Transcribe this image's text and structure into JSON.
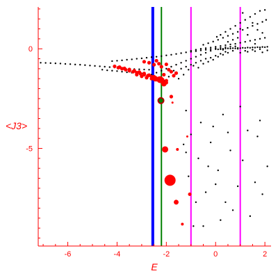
{
  "chart_data": {
    "type": "scatter",
    "title": "",
    "xlabel": "E",
    "ylabel": "<J3>",
    "xlim": [
      -7.2,
      2.25
    ],
    "ylim": [
      -9.9,
      2.1
    ],
    "xticks": [
      {
        "value": -6,
        "label": "-6"
      },
      {
        "value": -4,
        "label": "-4"
      },
      {
        "value": -2,
        "label": "-2"
      },
      {
        "value": 0,
        "label": "0"
      },
      {
        "value": 2,
        "label": "2"
      }
    ],
    "yticks": [
      {
        "value": 0,
        "label": "0"
      },
      {
        "value": -5,
        "label": "-5"
      }
    ],
    "grid": false,
    "colors": {
      "axis": "#ff0000",
      "labels": "#ff0000",
      "black_points": "#000000",
      "red_points": "#ff0000",
      "blue_line": "#0000ff",
      "green_line": "#008000",
      "magenta_line": "#ff00ff",
      "large_markers": "#ff0000",
      "dark_marker": "#b40000",
      "green_marker": "#008000"
    },
    "vertical_lines": [
      {
        "x": -2.55,
        "color": "#0000ff"
      },
      {
        "x": -2.2,
        "color": "#008000"
      },
      {
        "x": -1.0,
        "color": "#ff00ff"
      },
      {
        "x": 1.0,
        "color": "#ff00ff"
      }
    ],
    "series": [
      {
        "color": "#000000",
        "note_points": [
          [
            -7.1,
            -0.7
          ],
          [
            -6.9,
            -0.71
          ],
          [
            -6.7,
            -0.72
          ],
          [
            -6.5,
            -0.73
          ],
          [
            -6.3,
            -0.74
          ],
          [
            -6.1,
            -0.76
          ],
          [
            -5.9,
            -0.77
          ],
          [
            -5.7,
            -0.79
          ],
          [
            -5.5,
            -0.8
          ],
          [
            -5.3,
            -0.82
          ],
          [
            -5.1,
            -0.84
          ],
          [
            -4.9,
            -0.86
          ],
          [
            -4.7,
            -0.88
          ],
          [
            -4.5,
            -0.9
          ],
          [
            -4.3,
            -0.92
          ],
          [
            -4.1,
            -0.94
          ],
          [
            -3.9,
            -0.96
          ],
          [
            -3.7,
            -0.98
          ],
          [
            -3.5,
            -1.0
          ],
          [
            -3.3,
            -1.02
          ],
          [
            -3.1,
            -1.03
          ],
          [
            -2.9,
            -1.04
          ],
          [
            -2.7,
            -1.05
          ],
          [
            -4.6,
            -1.05
          ],
          [
            -4.4,
            -1.08
          ],
          [
            -4.2,
            -1.1
          ],
          [
            -4.0,
            -1.12
          ],
          [
            -3.8,
            -1.15
          ],
          [
            -3.6,
            -1.18
          ],
          [
            -3.4,
            -1.2
          ],
          [
            -3.2,
            -1.22
          ],
          [
            -3.0,
            -1.24
          ],
          [
            -4.2,
            -0.62
          ],
          [
            -4.0,
            -0.6
          ],
          [
            -3.8,
            -0.58
          ],
          [
            -3.6,
            -0.55
          ],
          [
            -3.4,
            -0.53
          ],
          [
            -3.2,
            -0.5
          ],
          [
            -3.0,
            -0.48
          ],
          [
            -2.8,
            -0.45
          ],
          [
            -2.6,
            -0.42
          ],
          [
            -2.4,
            -0.4
          ],
          [
            -2.2,
            -0.37
          ],
          [
            -2.0,
            -0.33
          ],
          [
            -1.8,
            -0.3
          ],
          [
            -1.6,
            -0.26
          ],
          [
            -1.4,
            -0.22
          ],
          [
            -1.2,
            -0.18
          ],
          [
            -1.0,
            -0.15
          ],
          [
            -0.8,
            -0.12
          ],
          [
            -0.6,
            -0.08
          ],
          [
            -0.4,
            -0.05
          ],
          [
            -0.2,
            -0.02
          ],
          [
            0.0,
            0.02
          ],
          [
            0.2,
            0.05
          ],
          [
            0.4,
            0.08
          ],
          [
            0.6,
            0.1
          ],
          [
            0.8,
            0.12
          ],
          [
            -2.6,
            -1.3
          ],
          [
            -2.4,
            -1.2
          ],
          [
            -2.2,
            -1.1
          ],
          [
            -2.0,
            -1.0
          ],
          [
            -1.8,
            -0.9
          ],
          [
            -1.6,
            -0.8
          ],
          [
            -1.4,
            -0.7
          ],
          [
            -1.2,
            -0.6
          ],
          [
            -1.0,
            -0.5
          ],
          [
            -0.8,
            -0.4
          ],
          [
            -0.6,
            -0.3
          ],
          [
            -0.4,
            -0.2
          ],
          [
            -0.2,
            -0.1
          ],
          [
            -1.4,
            -1.0
          ],
          [
            -1.2,
            -0.9
          ],
          [
            -1.0,
            -0.8
          ],
          [
            -0.8,
            -0.7
          ],
          [
            -0.6,
            -0.6
          ],
          [
            -0.4,
            -0.5
          ],
          [
            -0.2,
            -0.45
          ],
          [
            0.0,
            -0.35
          ],
          [
            0.2,
            -0.25
          ],
          [
            0.4,
            -0.15
          ],
          [
            -1.0,
            -0.1
          ],
          [
            -0.8,
            -0.05
          ],
          [
            -0.6,
            0.0
          ],
          [
            -0.4,
            0.03
          ],
          [
            -0.2,
            0.06
          ],
          [
            0.0,
            0.1
          ],
          [
            0.2,
            0.14
          ],
          [
            0.4,
            0.18
          ],
          [
            0.6,
            0.22
          ],
          [
            0.8,
            0.25
          ],
          [
            1.0,
            0.3
          ],
          [
            1.2,
            0.35
          ],
          [
            1.4,
            0.4
          ],
          [
            1.6,
            0.45
          ],
          [
            1.8,
            0.5
          ],
          [
            2.0,
            0.55
          ],
          [
            -0.5,
            0.2
          ],
          [
            -0.3,
            0.28
          ],
          [
            -0.1,
            0.36
          ],
          [
            0.1,
            0.45
          ],
          [
            0.3,
            0.55
          ],
          [
            0.5,
            0.65
          ],
          [
            0.7,
            0.75
          ],
          [
            0.9,
            0.85
          ],
          [
            1.1,
            0.95
          ],
          [
            1.3,
            1.05
          ],
          [
            1.5,
            1.15
          ],
          [
            1.7,
            1.25
          ],
          [
            1.9,
            1.35
          ],
          [
            2.05,
            1.45
          ],
          [
            0.2,
            0.7
          ],
          [
            0.4,
            0.85
          ],
          [
            0.6,
            1.0
          ],
          [
            0.8,
            1.15
          ],
          [
            1.0,
            1.3
          ],
          [
            1.2,
            1.45
          ],
          [
            1.4,
            1.6
          ],
          [
            1.6,
            1.75
          ],
          [
            1.8,
            1.9
          ],
          [
            2.0,
            1.95
          ],
          [
            1.1,
            1.8
          ],
          [
            1.5,
            1.3
          ],
          [
            0.9,
            0.55
          ],
          [
            1.7,
            0.95
          ],
          [
            0.5,
            0.35
          ],
          [
            1.9,
            0.8
          ],
          [
            0.05,
            0.6
          ],
          [
            0.3,
            -0.05
          ],
          [
            0.7,
            0.45
          ],
          [
            1.3,
            0.7
          ],
          [
            1.0,
            1.0
          ],
          [
            1.6,
            0.25
          ],
          [
            -2.1,
            -1.6
          ],
          [
            -1.9,
            -1.4
          ],
          [
            -1.7,
            -1.1
          ],
          [
            -1.5,
            -1.5
          ],
          [
            -1.3,
            -1.3
          ],
          [
            -1.1,
            -1.05
          ],
          [
            -0.9,
            -0.85
          ],
          [
            -0.7,
            -0.95
          ],
          [
            -0.5,
            -0.75
          ],
          [
            -0.3,
            -0.65
          ],
          [
            -0.1,
            -0.55
          ],
          [
            0.1,
            -0.4
          ],
          [
            0.3,
            -0.3
          ],
          [
            0.5,
            -0.2
          ],
          [
            0.7,
            -0.1
          ],
          [
            0.9,
            0.0
          ],
          [
            0.0,
            -0.02
          ],
          [
            0.1,
            -0.03
          ],
          [
            0.2,
            -0.02
          ],
          [
            0.3,
            0.0
          ],
          [
            0.4,
            0.01
          ],
          [
            0.5,
            0.02
          ],
          [
            0.6,
            0.01
          ],
          [
            0.7,
            0.03
          ],
          [
            0.8,
            0.02
          ],
          [
            0.9,
            0.04
          ],
          [
            1.0,
            0.03
          ],
          [
            1.1,
            0.05
          ],
          [
            1.2,
            0.04
          ],
          [
            1.3,
            0.06
          ],
          [
            1.4,
            0.05
          ],
          [
            1.5,
            0.07
          ],
          [
            1.6,
            0.06
          ],
          [
            1.7,
            0.08
          ],
          [
            1.8,
            0.07
          ],
          [
            1.9,
            0.09
          ],
          [
            2.0,
            0.08
          ],
          [
            2.1,
            0.1
          ],
          [
            1.2,
            -0.1
          ],
          [
            1.5,
            -0.05
          ],
          [
            1.8,
            -0.02
          ],
          [
            2.1,
            -0.08
          ],
          [
            1.0,
            -0.2
          ],
          [
            1.3,
            -0.15
          ],
          [
            1.6,
            -0.12
          ],
          [
            1.9,
            -0.18
          ],
          [
            -1.2,
            -3.1
          ],
          [
            -1.0,
            -4.3
          ],
          [
            -0.6,
            -3.7
          ],
          [
            -0.2,
            -4.7
          ],
          [
            0.3,
            -3.3
          ],
          [
            0.6,
            -5.1
          ],
          [
            0.9,
            -6.9
          ],
          [
            1.3,
            -4.1
          ],
          [
            1.7,
            -4.4
          ],
          [
            2.1,
            -5.9
          ],
          [
            -0.7,
            -5.5
          ],
          [
            0.1,
            -6.1
          ],
          [
            0.4,
            -7.7
          ],
          [
            0.7,
            -8.1
          ],
          [
            1.4,
            -8.4
          ],
          [
            -0.4,
            -7.2
          ],
          [
            -0.9,
            -8.9
          ],
          [
            -0.5,
            -8.9
          ],
          [
            -0.8,
            -7.7
          ],
          [
            -1.1,
            -6.4
          ],
          [
            0.0,
            -6.8
          ],
          [
            1.1,
            -5.6
          ],
          [
            1.9,
            -7.3
          ],
          [
            1.6,
            -6.7
          ],
          [
            -0.3,
            -5.9
          ],
          [
            0.2,
            -8.6
          ],
          [
            -0.1,
            -3.9
          ],
          [
            0.5,
            -4.2
          ],
          [
            1.0,
            -2.9
          ],
          [
            1.8,
            -3.6
          ],
          [
            -1.3,
            -4.8
          ],
          [
            -1.2,
            -5.2
          ]
        ]
      },
      {
        "color": "#ff0000",
        "note_points": [
          [
            -4.1,
            -0.88
          ],
          [
            -3.95,
            -0.95
          ],
          [
            -3.8,
            -1.0
          ],
          [
            -3.65,
            -1.05
          ],
          [
            -3.5,
            -1.1
          ],
          [
            -3.35,
            -1.15
          ],
          [
            -3.2,
            -1.2
          ],
          [
            -3.05,
            -1.25
          ],
          [
            -2.9,
            -1.3
          ],
          [
            -2.75,
            -1.35
          ],
          [
            -2.6,
            -1.4
          ],
          [
            -2.45,
            -1.45
          ],
          [
            -2.3,
            -1.5
          ],
          [
            -2.15,
            -1.55
          ],
          [
            -2.0,
            -1.6
          ],
          [
            -3.9,
            -0.92
          ],
          [
            -3.7,
            -0.98
          ],
          [
            -3.5,
            -1.04
          ],
          [
            -3.3,
            -1.1
          ],
          [
            -3.1,
            -1.17
          ],
          [
            -2.9,
            -1.24
          ],
          [
            -2.7,
            -1.32
          ],
          [
            -2.5,
            -1.4
          ],
          [
            -2.3,
            -1.48
          ],
          [
            -3.2,
            -1.3
          ],
          [
            -3.0,
            -1.38
          ],
          [
            -2.8,
            -1.45
          ],
          [
            -2.6,
            -1.5
          ],
          [
            -2.4,
            -1.55
          ],
          [
            -2.9,
            -0.65
          ],
          [
            -2.7,
            -0.7
          ],
          [
            -2.5,
            -0.8
          ],
          [
            -2.3,
            -0.75
          ],
          [
            -2.2,
            -0.9
          ],
          [
            -2.0,
            -0.78
          ],
          [
            -1.9,
            -1.05
          ],
          [
            -1.8,
            -1.15
          ],
          [
            -1.6,
            -1.22
          ],
          [
            -2.4,
            -0.6
          ],
          [
            -2.1,
            -1.3
          ],
          [
            -2.0,
            -1.7
          ],
          [
            -1.8,
            -2.4
          ],
          [
            -1.7,
            -1.35
          ]
        ]
      }
    ],
    "big_markers": [
      {
        "x": -2.25,
        "y": -1.55,
        "r": 5,
        "color": "#ff0000"
      },
      {
        "x": -2.1,
        "y": -1.75,
        "r": 4,
        "color": "#ff0000"
      },
      {
        "x": -2.45,
        "y": -1.5,
        "r": 4,
        "color": "#ff0000"
      },
      {
        "x": -2.22,
        "y": -2.6,
        "r": 5,
        "color": "#b40000"
      },
      {
        "x": -2.22,
        "y": -2.6,
        "r": 3,
        "color": "#008000"
      },
      {
        "x": -2.05,
        "y": -5.05,
        "r": 4.5,
        "color": "#ff0000"
      },
      {
        "x": -1.55,
        "y": -5.05,
        "r": 2,
        "color": "#ff0000"
      },
      {
        "x": -1.85,
        "y": -6.6,
        "r": 8,
        "color": "#ff0000"
      },
      {
        "x": -1.6,
        "y": -7.7,
        "r": 3.5,
        "color": "#ff0000"
      },
      {
        "x": -1.05,
        "y": -7.3,
        "r": 2.5,
        "color": "#ff0000"
      },
      {
        "x": -1.35,
        "y": -8.8,
        "r": 2,
        "color": "#ff0000"
      },
      {
        "x": -1.15,
        "y": -4.4,
        "r": 1.5,
        "color": "#ff0000"
      },
      {
        "x": -1.75,
        "y": -2.7,
        "r": 1.5,
        "color": "#ff0000"
      }
    ]
  }
}
